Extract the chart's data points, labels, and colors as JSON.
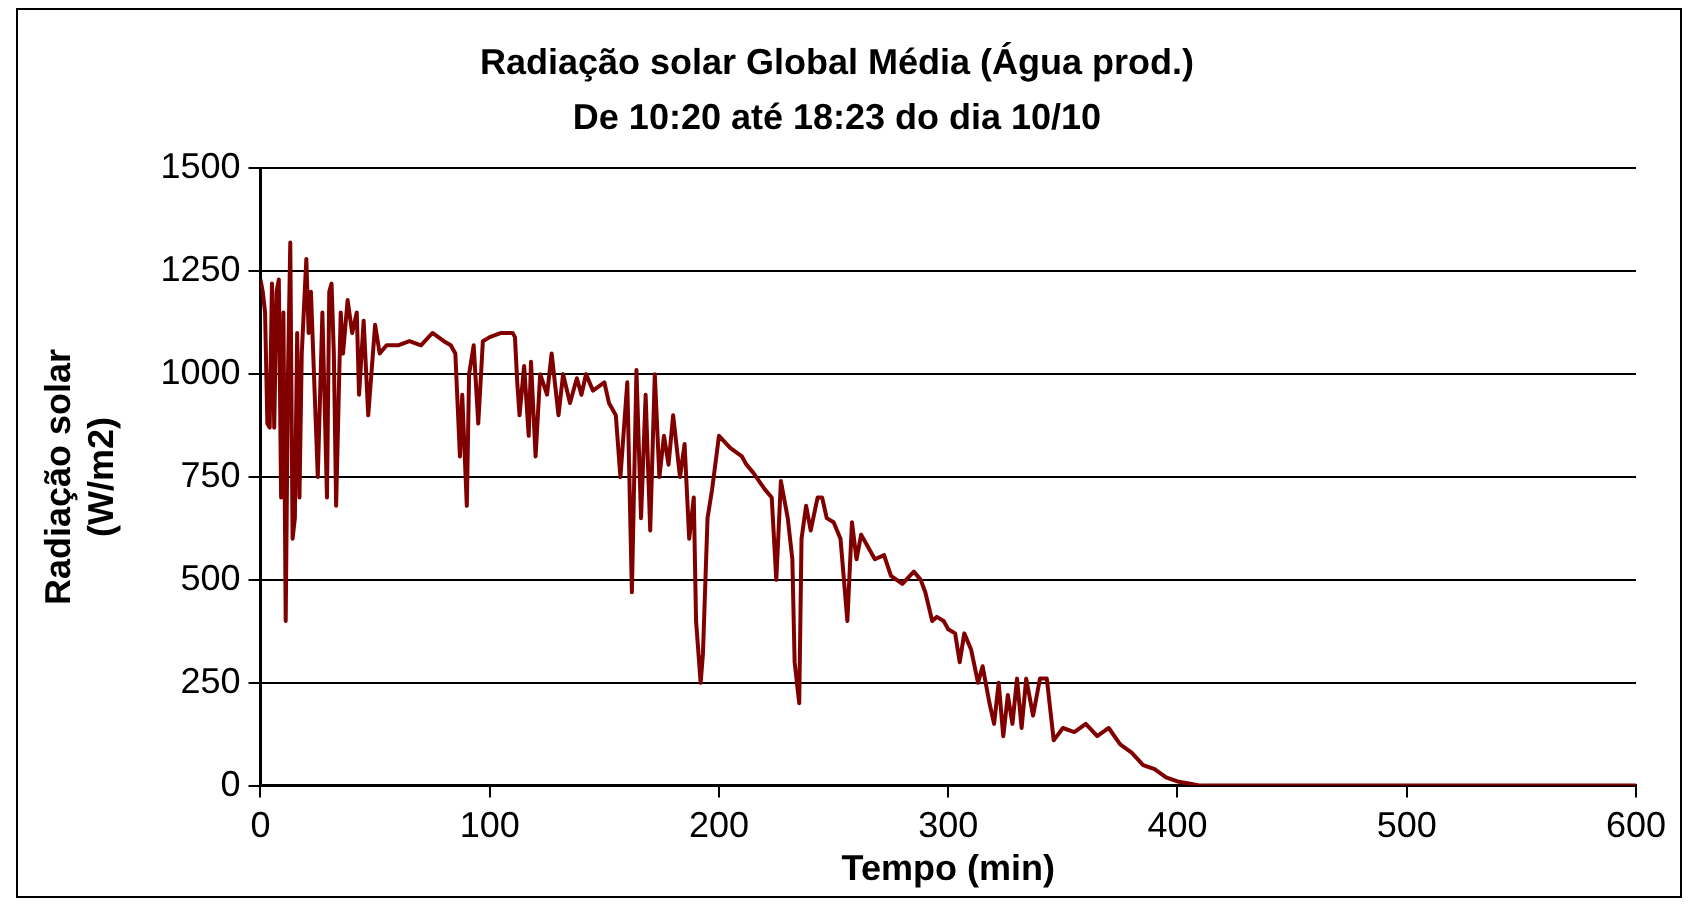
{
  "chart_data": {
    "type": "line",
    "title": "Radiação solar Global Média (Água prod.)",
    "subtitle": "De 10:20 até 18:23 do dia 10/10",
    "xlabel": "Tempo (min)",
    "ylabel": "Radiação solar\n(W/m2)",
    "xlim": [
      0,
      600
    ],
    "xticks": [
      0,
      100,
      200,
      300,
      400,
      500,
      600
    ],
    "ylim": [
      0,
      1500
    ],
    "yticks": [
      0,
      250,
      500,
      750,
      1000,
      1250,
      1500
    ],
    "grid": "y",
    "legend": false,
    "marker": "none",
    "line_style": "solid",
    "series": [
      {
        "color": "#800000",
        "x": [
          0,
          1,
          2,
          3,
          4,
          5,
          6,
          7,
          8,
          9,
          10,
          11,
          12,
          13,
          14,
          15,
          16,
          17,
          18,
          20,
          21,
          22,
          24,
          25,
          27,
          29,
          30,
          31,
          32,
          33,
          35,
          36,
          38,
          40,
          42,
          43,
          45,
          47,
          50,
          52,
          55,
          60,
          65,
          70,
          75,
          80,
          83,
          85,
          87,
          88,
          90,
          91,
          93,
          95,
          97,
          100,
          105,
          110,
          111,
          112,
          113,
          115,
          117,
          118,
          120,
          122,
          125,
          127,
          130,
          132,
          135,
          138,
          140,
          142,
          145,
          150,
          152,
          155,
          157,
          160,
          162,
          164,
          166,
          168,
          170,
          172,
          174,
          176,
          178,
          180,
          183,
          185,
          187,
          189,
          190,
          192,
          193,
          195,
          197,
          200,
          205,
          210,
          212,
          215,
          220,
          223,
          225,
          227,
          230,
          232,
          233,
          235,
          236,
          238,
          240,
          243,
          245,
          247,
          250,
          253,
          256,
          258,
          260,
          262,
          265,
          268,
          272,
          275,
          280,
          285,
          288,
          290,
          293,
          295,
          298,
          300,
          303,
          305,
          307,
          310,
          313,
          315,
          318,
          320,
          322,
          324,
          326,
          328,
          330,
          332,
          334,
          337,
          340,
          343,
          346,
          350,
          355,
          360,
          365,
          370,
          375,
          380,
          385,
          390,
          395,
          400,
          405,
          410,
          420,
          600
        ],
        "values": [
          1230,
          1200,
          1150,
          880,
          870,
          1220,
          870,
          1200,
          1230,
          700,
          1150,
          400,
          1000,
          1320,
          600,
          650,
          1100,
          700,
          1050,
          1280,
          1100,
          1200,
          900,
          750,
          1150,
          700,
          1200,
          1220,
          1050,
          680,
          1150,
          1050,
          1180,
          1100,
          1150,
          950,
          1130,
          900,
          1120,
          1050,
          1070,
          1070,
          1080,
          1070,
          1100,
          1080,
          1070,
          1050,
          800,
          950,
          680,
          1000,
          1070,
          880,
          1080,
          1090,
          1100,
          1100,
          1090,
          980,
          900,
          1020,
          850,
          1030,
          800,
          1000,
          950,
          1050,
          900,
          1000,
          930,
          990,
          950,
          1000,
          960,
          980,
          930,
          900,
          750,
          980,
          470,
          1010,
          650,
          950,
          620,
          1000,
          750,
          850,
          780,
          900,
          750,
          830,
          600,
          700,
          400,
          250,
          320,
          650,
          720,
          850,
          820,
          800,
          780,
          760,
          720,
          700,
          500,
          740,
          650,
          550,
          300,
          200,
          600,
          680,
          620,
          700,
          700,
          650,
          640,
          600,
          400,
          640,
          550,
          610,
          580,
          550,
          560,
          510,
          490,
          520,
          500,
          470,
          400,
          410,
          400,
          380,
          370,
          300,
          370,
          330,
          250,
          290,
          200,
          150,
          250,
          120,
          220,
          150,
          260,
          140,
          260,
          170,
          260,
          260,
          110,
          140,
          130,
          150,
          120,
          140,
          100,
          80,
          50,
          40,
          20,
          10,
          5,
          0,
          0,
          0
        ]
      }
    ]
  }
}
